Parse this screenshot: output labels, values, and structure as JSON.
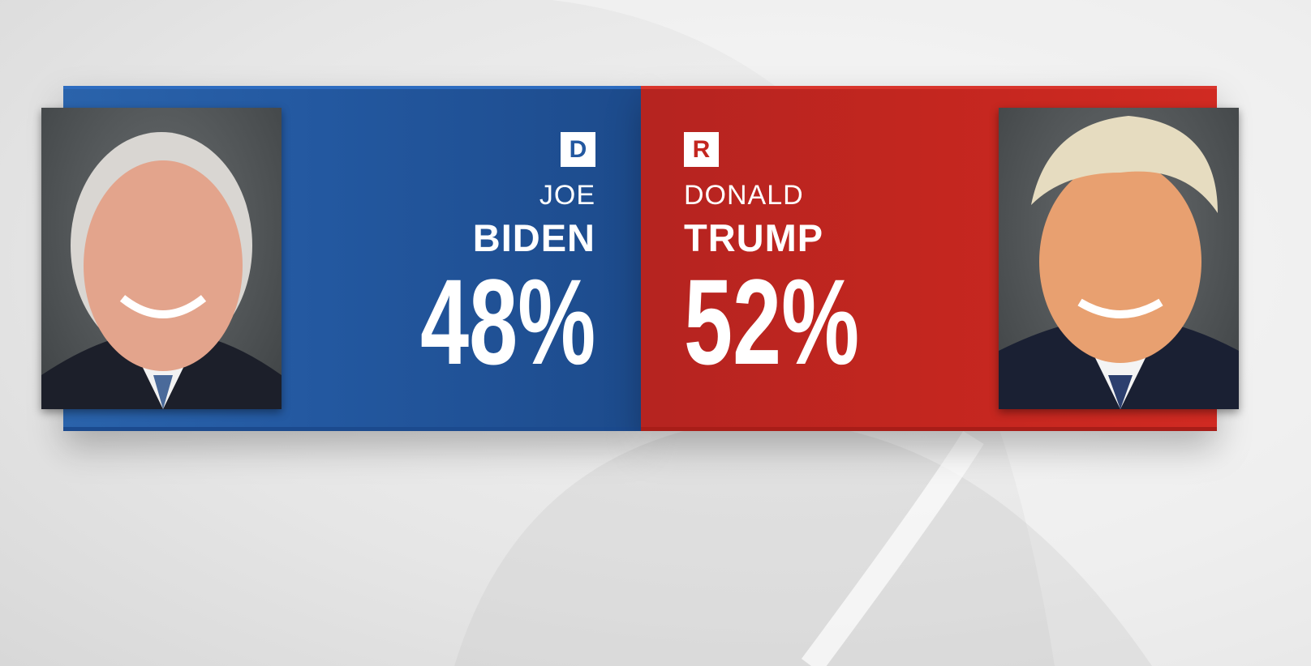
{
  "candidates": [
    {
      "party_badge": "D",
      "first_name": "JOE",
      "last_name": "BIDEN",
      "percent": "48%",
      "color": "#2358a0"
    },
    {
      "party_badge": "R",
      "first_name": "DONALD",
      "last_name": "TRUMP",
      "percent": "52%",
      "color": "#c3261f"
    }
  ]
}
